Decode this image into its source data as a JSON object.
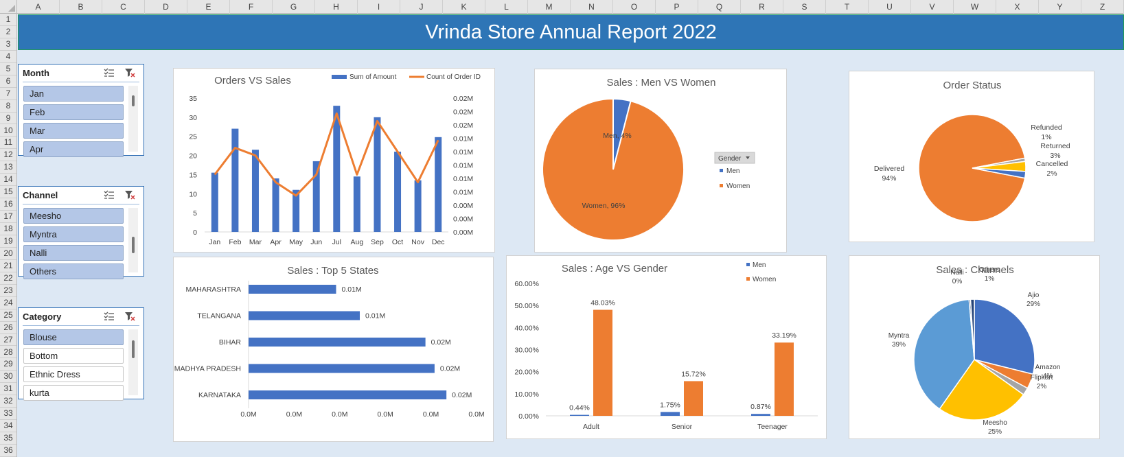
{
  "sheet": {
    "columns": [
      "A",
      "B",
      "C",
      "D",
      "E",
      "F",
      "G",
      "H",
      "I",
      "J",
      "K",
      "L",
      "M",
      "N",
      "O",
      "P",
      "Q",
      "R",
      "S",
      "T",
      "U",
      "V",
      "W",
      "X",
      "Y",
      "Z"
    ],
    "rows": [
      "1",
      "2",
      "3",
      "4",
      "5",
      "6",
      "7",
      "8",
      "9",
      "10",
      "11",
      "12",
      "13",
      "14",
      "15",
      "16",
      "17",
      "18",
      "19",
      "20",
      "21",
      "22",
      "23",
      "24",
      "25",
      "26",
      "27",
      "28",
      "29",
      "30",
      "31",
      "32",
      "33",
      "34",
      "35",
      "36"
    ]
  },
  "title": "Vrinda Store Annual Report 2022",
  "slicers": {
    "month": {
      "title": "Month",
      "items": [
        {
          "label": "Jan",
          "selected": true
        },
        {
          "label": "Feb",
          "selected": true
        },
        {
          "label": "Mar",
          "selected": true
        },
        {
          "label": "Apr",
          "selected": true
        }
      ]
    },
    "channel": {
      "title": "Channel",
      "items": [
        {
          "label": "Meesho",
          "selected": true
        },
        {
          "label": "Myntra",
          "selected": true
        },
        {
          "label": "Nalli",
          "selected": true
        },
        {
          "label": "Others",
          "selected": true
        }
      ]
    },
    "category": {
      "title": "Category",
      "items": [
        {
          "label": "Blouse",
          "selected": true
        },
        {
          "label": "Bottom",
          "selected": false
        },
        {
          "label": "Ethnic Dress",
          "selected": false
        },
        {
          "label": "kurta",
          "selected": false
        }
      ]
    }
  },
  "colors": {
    "blue": "#4472c4",
    "orange": "#ed7d31",
    "yellow": "#ffc000",
    "gray": "#a5a5a5",
    "light_blue": "#5b9bd5",
    "navy": "#264478",
    "banner": "#2e75b6"
  },
  "chart_data": [
    {
      "id": "orders_vs_sales",
      "type": "bar",
      "title": "Orders VS Sales",
      "categories": [
        "Jan",
        "Feb",
        "Mar",
        "Apr",
        "May",
        "Jun",
        "Jul",
        "Aug",
        "Sep",
        "Oct",
        "Nov",
        "Dec"
      ],
      "series": [
        {
          "name": "Sum of Amount",
          "kind": "bar",
          "axis": "left",
          "values": [
            15.5,
            27,
            21.5,
            14,
            11,
            18.5,
            33,
            14.5,
            30,
            21,
            13.5,
            24.8
          ]
        },
        {
          "name": "Count of Order ID",
          "kind": "line",
          "axis": "right",
          "values": [
            15,
            22,
            20,
            13,
            9.5,
            15,
            31,
            15,
            29,
            21,
            13,
            24
          ]
        }
      ],
      "left_ticks": [
        "0",
        "5",
        "10",
        "15",
        "20",
        "25",
        "30",
        "35"
      ],
      "right_ticks": [
        "0.00M",
        "0.00M",
        "0.00M",
        "0.01M",
        "0.01M",
        "0.01M",
        "0.01M",
        "0.01M",
        "0.02M",
        "0.02M",
        "0.02M"
      ],
      "ylim": [
        0,
        35
      ],
      "legend": "top"
    },
    {
      "id": "men_vs_women",
      "type": "pie",
      "title": "Sales : Men VS Women",
      "labels": [
        "Men",
        "Women"
      ],
      "values": [
        4,
        96
      ],
      "data_labels": [
        "Men, 4%",
        "Women, 96%"
      ],
      "legend_title": "Gender",
      "legend": "right"
    },
    {
      "id": "order_status",
      "type": "pie",
      "title": "Order Status",
      "labels": [
        "Delivered",
        "Refunded",
        "Returned",
        "Cancelled"
      ],
      "values": [
        94,
        1,
        3,
        2
      ],
      "data_labels": [
        [
          "Delivered",
          "94%"
        ],
        [
          "Refunded",
          "1%"
        ],
        [
          "Returned",
          "3%"
        ],
        [
          "Cancelled",
          "2%"
        ]
      ]
    },
    {
      "id": "top5_states",
      "type": "bar",
      "orientation": "horizontal",
      "title": "Sales : Top 5 States",
      "categories": [
        "MAHARASHTRA",
        "TELANGANA",
        "BIHAR",
        "MADHYA PRADESH",
        "KARNATAKA"
      ],
      "values": [
        0.0096,
        0.0122,
        0.0194,
        0.0204,
        0.0217
      ],
      "data_labels": [
        "0.01M",
        "0.01M",
        "0.02M",
        "0.02M",
        "0.02M"
      ],
      "xlim": [
        0,
        0.025
      ],
      "x_ticks": [
        "0.0M",
        "0.0M",
        "0.0M",
        "0.0M",
        "0.0M",
        "0.0M"
      ]
    },
    {
      "id": "age_vs_gender",
      "type": "bar",
      "title": "Sales : Age VS Gender",
      "categories": [
        "Adult",
        "Senior",
        "Teenager"
      ],
      "series": [
        {
          "name": "Men",
          "values": [
            0.44,
            1.75,
            0.87
          ]
        },
        {
          "name": "Women",
          "values": [
            48.03,
            15.72,
            33.19
          ]
        }
      ],
      "data_labels": [
        [
          "0.44%",
          "48.03%"
        ],
        [
          "1.75%",
          "15.72%"
        ],
        [
          "0.87%",
          "33.19%"
        ]
      ],
      "ylim": [
        0,
        60
      ],
      "y_ticks": [
        "0.00%",
        "10.00%",
        "20.00%",
        "30.00%",
        "40.00%",
        "50.00%",
        "60.00%"
      ],
      "legend": "top-right"
    },
    {
      "id": "channels",
      "type": "pie",
      "title": "Sales : Channels",
      "labels": [
        "Ajio",
        "Amazon",
        "Flipkart",
        "Meesho",
        "Myntra",
        "Nalli",
        "Others"
      ],
      "values": [
        29,
        4,
        2,
        25,
        39,
        0.4,
        1
      ],
      "data_labels": [
        [
          "Ajio",
          "29%"
        ],
        [
          "Amazon",
          "4%"
        ],
        [
          "Flipkart",
          "2%"
        ],
        [
          "Meesho",
          "25%"
        ],
        [
          "Myntra",
          "39%"
        ],
        [
          "Nalli",
          "0%"
        ],
        [
          "Others",
          "1%"
        ]
      ]
    }
  ]
}
